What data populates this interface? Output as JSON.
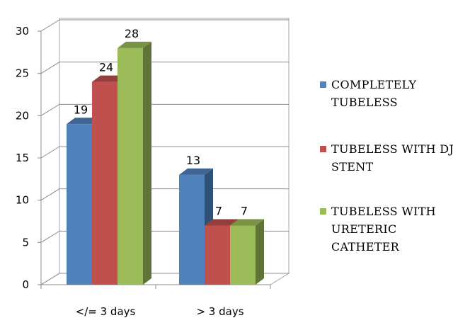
{
  "chart_data": {
    "type": "bar",
    "categories": [
      "</= 3 days",
      "> 3 days"
    ],
    "series": [
      {
        "name": "COMPLETELY TUBELESS",
        "legend_lines": [
          "COMPLETELY",
          "TUBELESS"
        ],
        "values": [
          19,
          13
        ],
        "color": "#4F81BD"
      },
      {
        "name": "TUBELESS WITH DJ STENT",
        "legend_lines": [
          "TUBELESS WITH DJ",
          "STENT"
        ],
        "values": [
          24,
          7
        ],
        "color": "#C0504D"
      },
      {
        "name": "TUBELESS WITH URETERIC CATHETER",
        "legend_lines": [
          "TUBELESS WITH",
          "URETERIC",
          "CATHETER"
        ],
        "values": [
          28,
          7
        ],
        "color": "#9BBB59"
      }
    ],
    "ylim": [
      0,
      30
    ],
    "yticks": [
      0,
      5,
      10,
      15,
      20,
      25,
      30
    ],
    "grid": true,
    "legend_position": "right",
    "style": "3d-clustered-column"
  }
}
